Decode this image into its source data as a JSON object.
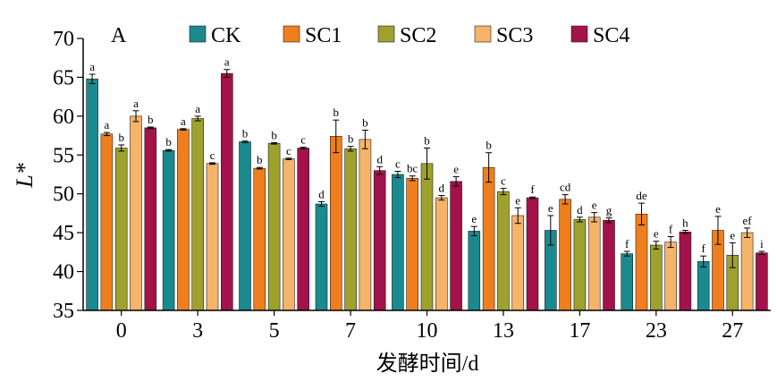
{
  "chart_data": {
    "type": "bar",
    "panel_label": "A",
    "xlabel": "发酵时间/d",
    "ylabel": "L*",
    "ylim": [
      35,
      70
    ],
    "yticks": [
      35,
      40,
      45,
      50,
      55,
      60,
      65,
      70
    ],
    "grid": false,
    "legend_position": "top",
    "categories": [
      "0",
      "3",
      "5",
      "7",
      "10",
      "13",
      "17",
      "23",
      "27"
    ],
    "series": [
      {
        "name": "CK",
        "color": "#1a8a8f",
        "values": [
          64.8,
          55.6,
          56.7,
          48.7,
          52.5,
          45.2,
          45.3,
          42.3,
          41.3
        ],
        "errors": [
          0.6,
          0.1,
          0.1,
          0.3,
          0.4,
          0.6,
          1.9,
          0.3,
          0.7
        ],
        "labels": [
          "a",
          "b",
          "b",
          "d",
          "c",
          "e",
          "e",
          "f",
          "f"
        ]
      },
      {
        "name": "SC1",
        "color": "#ef7f1e",
        "values": [
          57.7,
          58.3,
          53.3,
          57.4,
          52.0,
          53.4,
          49.3,
          47.4,
          45.3
        ],
        "errors": [
          0.2,
          0.1,
          0.1,
          2.1,
          0.3,
          1.9,
          0.6,
          1.4,
          1.8
        ],
        "labels": [
          "a",
          "a",
          "b",
          "b",
          "bc",
          "b",
          "cd",
          "de",
          "e"
        ]
      },
      {
        "name": "SC2",
        "color": "#9ea12d",
        "values": [
          55.9,
          59.7,
          56.5,
          55.8,
          53.9,
          50.3,
          46.7,
          43.4,
          42.1
        ],
        "errors": [
          0.4,
          0.3,
          0.1,
          0.3,
          2.0,
          0.4,
          0.3,
          0.5,
          1.6
        ],
        "labels": [
          "b",
          "a",
          "b",
          "b",
          "b",
          "c",
          "d",
          "e",
          "e"
        ]
      },
      {
        "name": "SC3",
        "color": "#f6b36a",
        "values": [
          60.0,
          53.9,
          54.5,
          57.0,
          49.5,
          47.2,
          47.0,
          43.8,
          45.0
        ],
        "errors": [
          0.7,
          0.1,
          0.1,
          1.2,
          0.3,
          1.0,
          0.6,
          0.7,
          0.6
        ],
        "labels": [
          "a",
          "c",
          "c",
          "b",
          "d",
          "e",
          "e",
          "f",
          "ef"
        ]
      },
      {
        "name": "SC4",
        "color": "#a3124a",
        "values": [
          58.5,
          65.5,
          55.9,
          53.0,
          51.6,
          49.5,
          46.6,
          45.1,
          42.4
        ],
        "errors": [
          0.1,
          0.5,
          0.1,
          0.5,
          0.6,
          0.1,
          0.3,
          0.2,
          0.2
        ],
        "labels": [
          "b",
          "a",
          "c",
          "d",
          "e",
          "f",
          "g",
          "h",
          "i"
        ]
      }
    ]
  }
}
